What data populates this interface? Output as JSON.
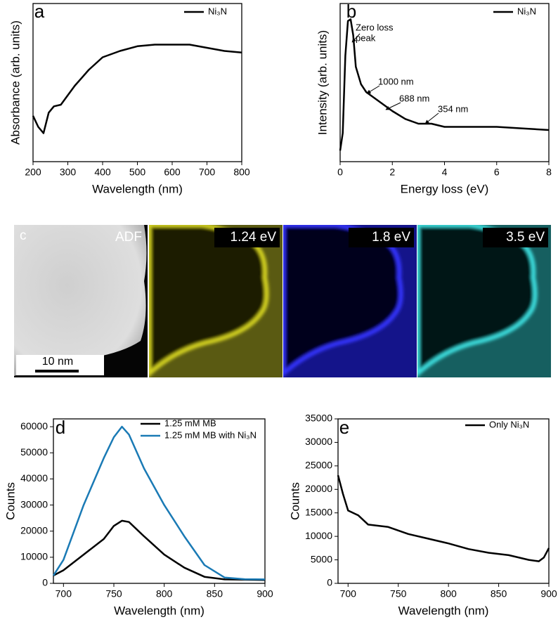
{
  "chart_data": [
    {
      "type": "line",
      "panel_label": "a",
      "xlabel": "Wavelength (nm)",
      "ylabel": "Absorbance (arb. units)",
      "x": [
        200,
        215,
        230,
        245,
        260,
        280,
        300,
        320,
        340,
        360,
        380,
        400,
        450,
        500,
        550,
        600,
        650,
        700,
        750,
        800
      ],
      "series": [
        {
          "name": "Ni₃N",
          "color": "#000000",
          "values": [
            0.29,
            0.22,
            0.18,
            0.31,
            0.35,
            0.36,
            0.42,
            0.48,
            0.53,
            0.58,
            0.62,
            0.66,
            0.7,
            0.73,
            0.74,
            0.74,
            0.74,
            0.72,
            0.7,
            0.69
          ]
        }
      ],
      "xlim": [
        200,
        800
      ],
      "xticks": [
        200,
        300,
        400,
        500,
        600,
        700,
        800
      ],
      "ylim": [
        0,
        1
      ],
      "legend": "upper right"
    },
    {
      "type": "line",
      "panel_label": "b",
      "xlabel": "Energy loss (eV)",
      "ylabel": "Intensity (arb. units)",
      "x": [
        0,
        0.1,
        0.2,
        0.3,
        0.4,
        0.5,
        0.6,
        0.8,
        1.0,
        1.5,
        2,
        2.5,
        3,
        3.5,
        4,
        5,
        6,
        7,
        8
      ],
      "series": [
        {
          "name": "Ni₃N",
          "color": "#000000",
          "values": [
            0.07,
            0.18,
            0.67,
            0.89,
            0.9,
            0.8,
            0.6,
            0.49,
            0.44,
            0.38,
            0.32,
            0.27,
            0.24,
            0.24,
            0.22,
            0.22,
            0.22,
            0.21,
            0.2
          ]
        }
      ],
      "annotations": [
        {
          "lines": [
            "Zero loss",
            "peak"
          ]
        },
        {
          "lines": [
            "1000 nm"
          ]
        },
        {
          "lines": [
            "688 nm"
          ]
        },
        {
          "lines": [
            "354 nm"
          ]
        }
      ],
      "xlim": [
        0,
        8
      ],
      "xticks": [
        0,
        2,
        4,
        6,
        8
      ],
      "ylim": [
        0,
        1
      ],
      "legend": "upper right"
    },
    {
      "type": "line",
      "panel_label": "d",
      "xlabel": "Wavelength (nm)",
      "ylabel": "Counts",
      "x": [
        690,
        700,
        720,
        740,
        750,
        758,
        765,
        780,
        800,
        820,
        840,
        860,
        880,
        900
      ],
      "series": [
        {
          "name": "1.25 mM MB",
          "color": "#000000",
          "values": [
            3000,
            5000,
            11000,
            17000,
            22000,
            24000,
            23500,
            18000,
            11000,
            6000,
            2500,
            1500,
            1400,
            1300
          ]
        },
        {
          "name": "1.25 mM MB with Ni₃N",
          "color": "#1a7ab5",
          "values": [
            3000,
            9000,
            30000,
            48000,
            56000,
            60000,
            57000,
            44000,
            30000,
            18000,
            7000,
            2200,
            1600,
            1500
          ]
        }
      ],
      "xlim": [
        690,
        900
      ],
      "xticks": [
        700,
        750,
        800,
        850,
        900
      ],
      "ylim": [
        0,
        63000
      ],
      "yticks": [
        0,
        10000,
        20000,
        30000,
        40000,
        50000,
        60000
      ],
      "legend": "upper center"
    },
    {
      "type": "line",
      "panel_label": "e",
      "xlabel": "Wavelength (nm)",
      "ylabel": "Counts",
      "x": [
        690,
        695,
        700,
        710,
        720,
        740,
        760,
        780,
        800,
        820,
        840,
        860,
        880,
        890,
        895,
        900
      ],
      "series": [
        {
          "name": "Only Ni₃N",
          "color": "#000000",
          "values": [
            23000,
            19000,
            15500,
            14500,
            12500,
            12000,
            10500,
            9500,
            8500,
            7300,
            6500,
            6000,
            5000,
            4700,
            5500,
            7500
          ]
        }
      ],
      "xlim": [
        690,
        900
      ],
      "xticks": [
        700,
        750,
        800,
        850,
        900
      ],
      "ylim": [
        0,
        35000
      ],
      "yticks": [
        0,
        5000,
        10000,
        15000,
        20000,
        25000,
        30000,
        35000
      ],
      "legend": "upper right"
    }
  ],
  "maps": {
    "panel_label": "c",
    "panels": [
      "ADF",
      "1.24 eV",
      "1.8 eV",
      "3.5 eV"
    ],
    "scale_bar": "10 nm"
  }
}
